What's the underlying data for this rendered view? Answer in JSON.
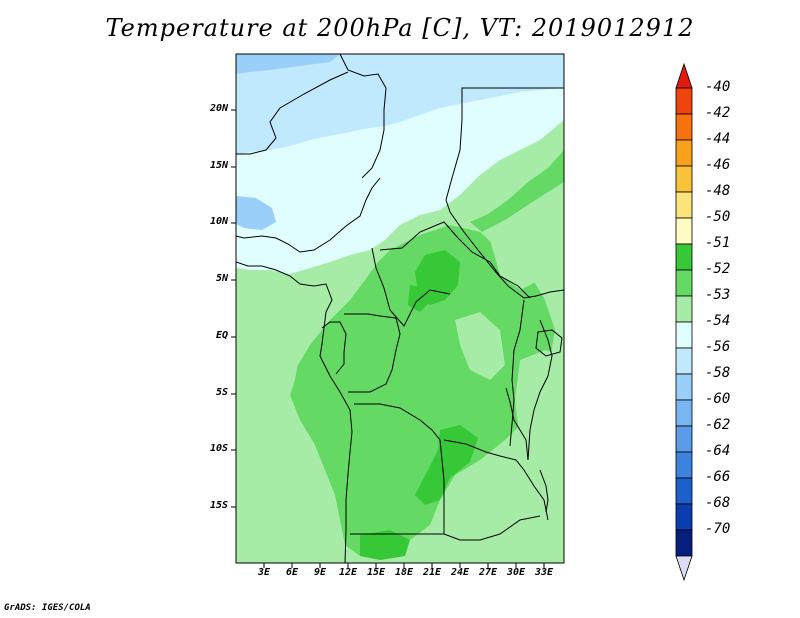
{
  "title": "Temperature at 200hPa [C], VT: 2019012912",
  "credit": "GrADS: IGES/COLA",
  "map": {
    "lat_labels": [
      "20N",
      "15N",
      "10N",
      "5N",
      "EQ",
      "5S",
      "10S",
      "15S"
    ],
    "lon_labels": [
      "3E",
      "6E",
      "9E",
      "12E",
      "15E",
      "18E",
      "21E",
      "24E",
      "27E",
      "30E",
      "33E"
    ]
  },
  "colorbar": {
    "labels": [
      "-40",
      "-42",
      "-44",
      "-46",
      "-48",
      "-50",
      "-51",
      "-52",
      "-53",
      "-54",
      "-56",
      "-58",
      "-60",
      "-62",
      "-64",
      "-66",
      "-68",
      "-70"
    ],
    "colors": [
      "#e31a10",
      "#f0440d",
      "#f6720d",
      "#f9a11a",
      "#fbc33a",
      "#fde47a",
      "#fffcc4",
      "#36c836",
      "#64d964",
      "#a6eca6",
      "#e0fefe",
      "#c1e9fd",
      "#99cff9",
      "#78b6f2",
      "#5a9ce8",
      "#3d82dc",
      "#1d5fcb",
      "#0a3daf",
      "#081e7e",
      "#dcdcf5"
    ]
  },
  "field_colors": {
    "m51": "#fffcc4",
    "m52": "#36c836",
    "m53": "#64d964",
    "m54": "#a6eca6",
    "m56": "#e0fefe",
    "m58": "#c1e9fd",
    "m60": "#99cff9"
  }
}
